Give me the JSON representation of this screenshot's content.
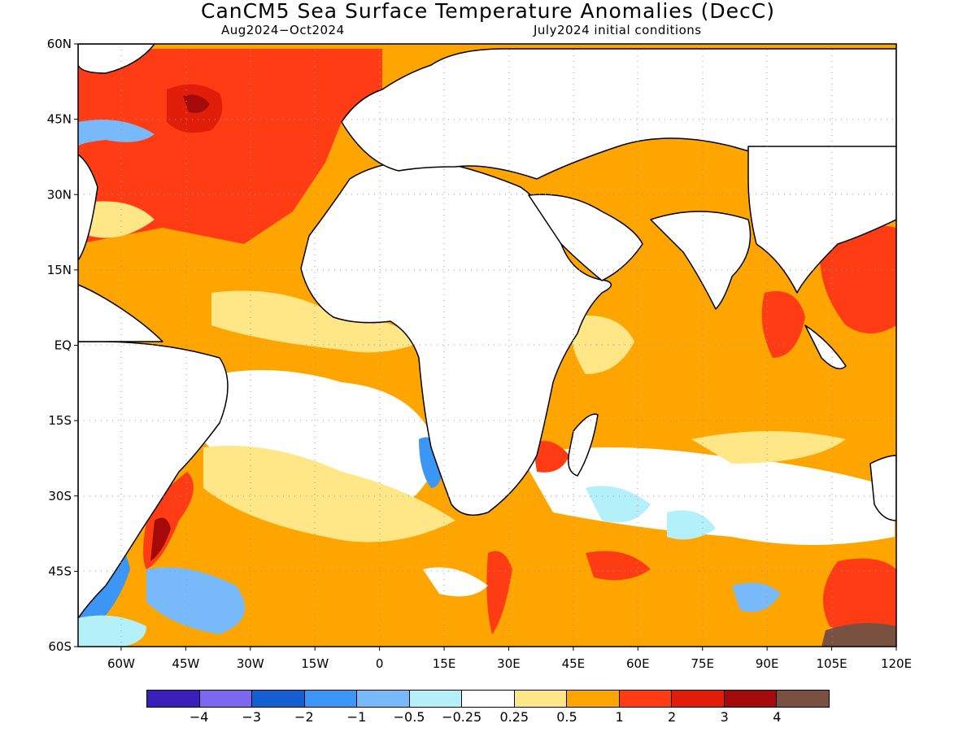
{
  "title": "CanCM5 Sea Surface Temperature Anomalies (DecC)",
  "subtitle_left": "Aug2024−Oct2024",
  "subtitle_right": "July2024 initial conditions",
  "map": {
    "lon_range": [
      -70,
      120
    ],
    "lat_range": [
      -60,
      60
    ],
    "lat_ticks": [
      {
        "lat": 60,
        "label": "60N"
      },
      {
        "lat": 45,
        "label": "45N"
      },
      {
        "lat": 30,
        "label": "30N"
      },
      {
        "lat": 15,
        "label": "15N"
      },
      {
        "lat": 0,
        "label": "EQ"
      },
      {
        "lat": -15,
        "label": "15S"
      },
      {
        "lat": -30,
        "label": "30S"
      },
      {
        "lat": -45,
        "label": "45S"
      },
      {
        "lat": -60,
        "label": "60S"
      }
    ],
    "lon_ticks": [
      {
        "lon": -60,
        "label": "60W"
      },
      {
        "lon": -45,
        "label": "45W"
      },
      {
        "lon": -30,
        "label": "30W"
      },
      {
        "lon": -15,
        "label": "15W"
      },
      {
        "lon": 0,
        "label": "0"
      },
      {
        "lon": 15,
        "label": "15E"
      },
      {
        "lon": 30,
        "label": "30E"
      },
      {
        "lon": 45,
        "label": "45E"
      },
      {
        "lon": 60,
        "label": "60E"
      },
      {
        "lon": 75,
        "label": "75E"
      },
      {
        "lon": 90,
        "label": "90E"
      },
      {
        "lon": 105,
        "label": "105E"
      },
      {
        "lon": 120,
        "label": "120E"
      }
    ],
    "grid": "dotted",
    "ocean_background_color": "#ffa500",
    "land_color": "#ffffff",
    "coastline_color": "#000000"
  },
  "colorbar": {
    "colors": [
      "#3a1fb8",
      "#7b68ee",
      "#1560d0",
      "#3c96f5",
      "#78b9fa",
      "#b4f0fa",
      "#ffffff",
      "#ffe687",
      "#ffa500",
      "#ff3c14",
      "#e11e0a",
      "#a50a0a",
      "#7a5040"
    ],
    "labels": [
      "−4",
      "−3",
      "−2",
      "−1",
      "−0.5",
      "−0.25",
      "0.25",
      "0.5",
      "1",
      "2",
      "3",
      "4"
    ]
  }
}
